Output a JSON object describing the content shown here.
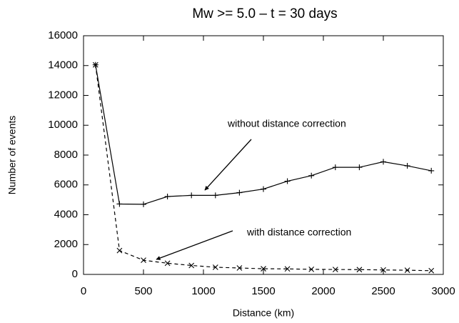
{
  "chart_data": {
    "type": "line",
    "title": "Mw >= 5.0 – t = 30 days",
    "xlabel": "Distance (km)",
    "ylabel": "Number of events",
    "annotations": [
      "without distance correction",
      "with distance correction"
    ],
    "x": [
      100,
      300,
      500,
      700,
      900,
      1100,
      1300,
      1500,
      1700,
      1900,
      2100,
      2300,
      2500,
      2700,
      2900
    ],
    "series": [
      {
        "color": "#000000",
        "dashed": false,
        "marker": "plus",
        "values": [
          14050,
          4720,
          4700,
          5220,
          5300,
          5300,
          5480,
          5720,
          6250,
          6620,
          7180,
          7180,
          7550,
          7280,
          6950
        ]
      },
      {
        "color": "#000000",
        "dashed": true,
        "marker": "cross",
        "values": [
          14050,
          1600,
          950,
          750,
          600,
          480,
          430,
          380,
          370,
          340,
          330,
          320,
          300,
          280,
          250
        ]
      }
    ],
    "xlim": [
      0,
      3000
    ],
    "xticks": [
      0,
      500,
      1000,
      1500,
      2000,
      2500,
      3000
    ],
    "ylim": [
      0,
      16000
    ],
    "yticks": [
      0,
      2000,
      4000,
      6000,
      8000,
      10000,
      12000,
      14000,
      16000
    ],
    "grid": false
  }
}
